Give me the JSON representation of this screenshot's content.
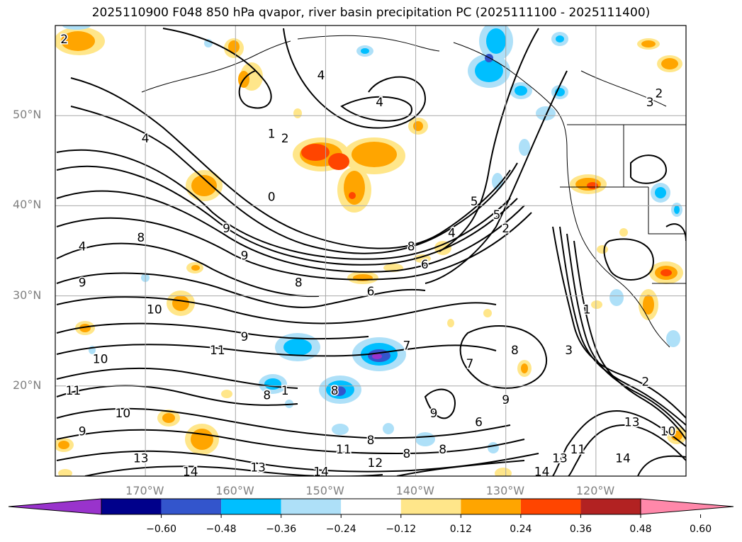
{
  "title": "2025110900 F048 850 hPa qvapor, river basin precipitation PC (2025111100 - 2025111400)",
  "map": {
    "extent": {
      "lon_min": -180,
      "lon_max": -110,
      "lat_min": 10,
      "lat_max": 60
    },
    "lat_labels": [
      {
        "value": 50,
        "label": "50°N"
      },
      {
        "value": 40,
        "label": "40°N"
      },
      {
        "value": 30,
        "label": "30°N"
      },
      {
        "value": 20,
        "label": "20°N"
      }
    ],
    "lon_labels": [
      {
        "value": -170,
        "label": "170°W"
      },
      {
        "value": -160,
        "label": "160°W"
      },
      {
        "value": -150,
        "label": "150°W"
      },
      {
        "value": -140,
        "label": "140°W"
      },
      {
        "value": -130,
        "label": "130°W"
      },
      {
        "value": -120,
        "label": "120°W"
      }
    ],
    "grid": true,
    "label_color": "#808080"
  },
  "colorbar": {
    "colors": [
      "#9933cc",
      "#00008b",
      "#3355cc",
      "#00bfff",
      "#aee0f8",
      "#ffffff",
      "#ffe68a",
      "#ffa500",
      "#ff4500",
      "#b22222",
      "#ff88aa"
    ],
    "extend": "both",
    "ticks": [
      "−0.60",
      "−0.48",
      "−0.36",
      "−0.24",
      "−0.12",
      "0.12",
      "0.24",
      "0.36",
      "0.48",
      "0.60"
    ]
  },
  "contour_labels": [
    {
      "text": "2",
      "lon": -179,
      "lat": 58.5
    },
    {
      "text": "4",
      "lon": -150.5,
      "lat": 54.5
    },
    {
      "text": "4",
      "lon": -144,
      "lat": 51.5
    },
    {
      "text": "2",
      "lon": -113,
      "lat": 52.5
    },
    {
      "text": "3",
      "lon": -114,
      "lat": 51.5
    },
    {
      "text": "4",
      "lon": -170,
      "lat": 47.5
    },
    {
      "text": "1",
      "lon": -156,
      "lat": 48
    },
    {
      "text": "2",
      "lon": -154.5,
      "lat": 47.5
    },
    {
      "text": "0",
      "lon": -156,
      "lat": 41
    },
    {
      "text": "5",
      "lon": -133.5,
      "lat": 40.5
    },
    {
      "text": "5",
      "lon": -131,
      "lat": 39
    },
    {
      "text": "2",
      "lon": -130,
      "lat": 37.5
    },
    {
      "text": "9",
      "lon": -161,
      "lat": 37.5
    },
    {
      "text": "8",
      "lon": -170.5,
      "lat": 36.5
    },
    {
      "text": "4",
      "lon": -177,
      "lat": 35.5
    },
    {
      "text": "9",
      "lon": -159,
      "lat": 34.5
    },
    {
      "text": "8",
      "lon": -140.5,
      "lat": 35.5
    },
    {
      "text": "6",
      "lon": -139,
      "lat": 33.5
    },
    {
      "text": "4",
      "lon": -136,
      "lat": 37
    },
    {
      "text": "8",
      "lon": -153,
      "lat": 31.5
    },
    {
      "text": "6",
      "lon": -145,
      "lat": 30.5
    },
    {
      "text": "9",
      "lon": -177,
      "lat": 31.5
    },
    {
      "text": "10",
      "lon": -169,
      "lat": 28.5
    },
    {
      "text": "1",
      "lon": -121,
      "lat": 28.5
    },
    {
      "text": "9",
      "lon": -159,
      "lat": 25.5
    },
    {
      "text": "11",
      "lon": -162,
      "lat": 24
    },
    {
      "text": "7",
      "lon": -141,
      "lat": 24.5
    },
    {
      "text": "3",
      "lon": -123,
      "lat": 24
    },
    {
      "text": "8",
      "lon": -129,
      "lat": 24
    },
    {
      "text": "10",
      "lon": -175,
      "lat": 23
    },
    {
      "text": "7",
      "lon": -134,
      "lat": 22.5
    },
    {
      "text": "2",
      "lon": -114.5,
      "lat": 20.5
    },
    {
      "text": "11",
      "lon": -178,
      "lat": 19.5
    },
    {
      "text": "8",
      "lon": -156.5,
      "lat": 19
    },
    {
      "text": "1",
      "lon": -154.5,
      "lat": 19.5
    },
    {
      "text": "8",
      "lon": -149,
      "lat": 19.5
    },
    {
      "text": "9",
      "lon": -130,
      "lat": 18.5
    },
    {
      "text": "10",
      "lon": -172.5,
      "lat": 17
    },
    {
      "text": "9",
      "lon": -138,
      "lat": 17
    },
    {
      "text": "6",
      "lon": -133,
      "lat": 16
    },
    {
      "text": "13",
      "lon": -116,
      "lat": 16
    },
    {
      "text": "10",
      "lon": -112,
      "lat": 15
    },
    {
      "text": "9",
      "lon": -177,
      "lat": 15
    },
    {
      "text": "8",
      "lon": -145,
      "lat": 14
    },
    {
      "text": "11",
      "lon": -148,
      "lat": 13
    },
    {
      "text": "8",
      "lon": -141,
      "lat": 12.5
    },
    {
      "text": "8",
      "lon": -137,
      "lat": 13
    },
    {
      "text": "11",
      "lon": -122,
      "lat": 13
    },
    {
      "text": "13",
      "lon": -124,
      "lat": 12
    },
    {
      "text": "12",
      "lon": -144.5,
      "lat": 11.5
    },
    {
      "text": "14",
      "lon": -117,
      "lat": 12
    },
    {
      "text": "13",
      "lon": -170.5,
      "lat": 12
    },
    {
      "text": "13",
      "lon": -157.5,
      "lat": 11
    },
    {
      "text": "14",
      "lon": -165,
      "lat": 10.5
    },
    {
      "text": "14",
      "lon": -150.5,
      "lat": 10.5
    },
    {
      "text": "14",
      "lon": -126,
      "lat": 10.5
    }
  ]
}
